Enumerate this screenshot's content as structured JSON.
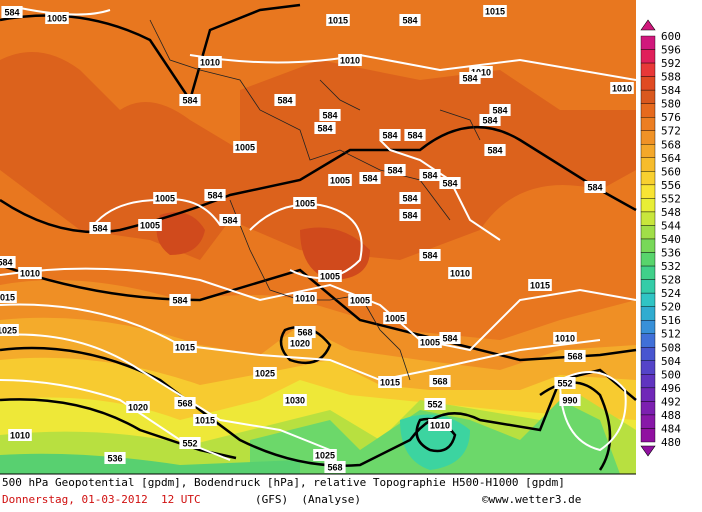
{
  "map": {
    "contour_labels": [
      "584",
      "1005",
      "584",
      "1015",
      "1015",
      "1010",
      "1010",
      "1010",
      "584",
      "1010",
      "584",
      "584",
      "584",
      "584",
      "584",
      "584",
      "584",
      "584",
      "584",
      "1005",
      "584",
      "584",
      "584",
      "584",
      "1005",
      "584",
      "584",
      "584",
      "1005",
      "584",
      "584",
      "1005",
      "1005",
      "584",
      "584",
      "1010",
      "584",
      "1010",
      "1005",
      "1015",
      "584",
      "1010",
      "1015",
      "1005",
      "1005",
      "568",
      "584",
      "1025",
      "1020",
      "1015",
      "1005",
      "1010",
      "568",
      "1025",
      "1015",
      "568",
      "552",
      "1030",
      "1020",
      "568",
      "552",
      "1015",
      "990",
      "1010",
      "552",
      "536",
      "1025",
      "568",
      "1010"
    ]
  },
  "legend": {
    "levels": [
      600,
      596,
      592,
      588,
      584,
      580,
      576,
      572,
      568,
      564,
      560,
      556,
      552,
      548,
      544,
      540,
      536,
      532,
      528,
      524,
      520,
      516,
      512,
      508,
      504,
      500,
      496,
      492,
      488,
      484,
      480
    ],
    "colors": [
      "#d0187c",
      "#e0205a",
      "#e83838",
      "#e04a22",
      "#d9581e",
      "#e66a1e",
      "#ec7e22",
      "#f09226",
      "#f4a82a",
      "#f6bc2c",
      "#f8d030",
      "#f8e434",
      "#e8ee36",
      "#c8e63c",
      "#a0de48",
      "#78d858",
      "#58d46c",
      "#40d08a",
      "#34cca8",
      "#30c4c4",
      "#30acd0",
      "#3890d8",
      "#4070d8",
      "#4856d0",
      "#5444c8",
      "#6034c0",
      "#7028b8",
      "#7c20b0",
      "#8818a8",
      "#9010a0"
    ]
  },
  "footer": {
    "description": "500 hPa Geopotential [gpdm], Bodendruck [hPa], relative Topographie H500-H1000 [gpdm]",
    "date": "Donnerstag, 01-03-2012  12 UTC",
    "model": "(GFS)  (Analyse)",
    "source": "©www.wetter3.de"
  }
}
